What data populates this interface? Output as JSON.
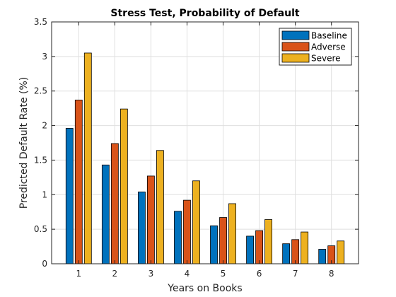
{
  "chart_data": {
    "type": "bar",
    "title": "Stress Test, Probability of Default",
    "xlabel": "Years on Books",
    "ylabel": "Predicted Default Rate (%)",
    "categories": [
      "1",
      "2",
      "3",
      "4",
      "5",
      "6",
      "7",
      "8"
    ],
    "ylim": [
      0,
      3.5
    ],
    "yticks": [
      "0",
      "0.5",
      "1",
      "1.5",
      "2",
      "2.5",
      "3",
      "3.5"
    ],
    "grid": true,
    "legend_position": "top-right",
    "series": [
      {
        "name": "Baseline",
        "color": "#0072BD",
        "values": [
          1.96,
          1.43,
          1.04,
          0.76,
          0.55,
          0.4,
          0.29,
          0.21
        ]
      },
      {
        "name": "Adverse",
        "color": "#D95319",
        "values": [
          2.37,
          1.74,
          1.27,
          0.92,
          0.67,
          0.48,
          0.35,
          0.26
        ]
      },
      {
        "name": "Severe",
        "color": "#EDB120",
        "values": [
          3.05,
          2.24,
          1.64,
          1.2,
          0.87,
          0.64,
          0.46,
          0.33
        ]
      }
    ]
  }
}
